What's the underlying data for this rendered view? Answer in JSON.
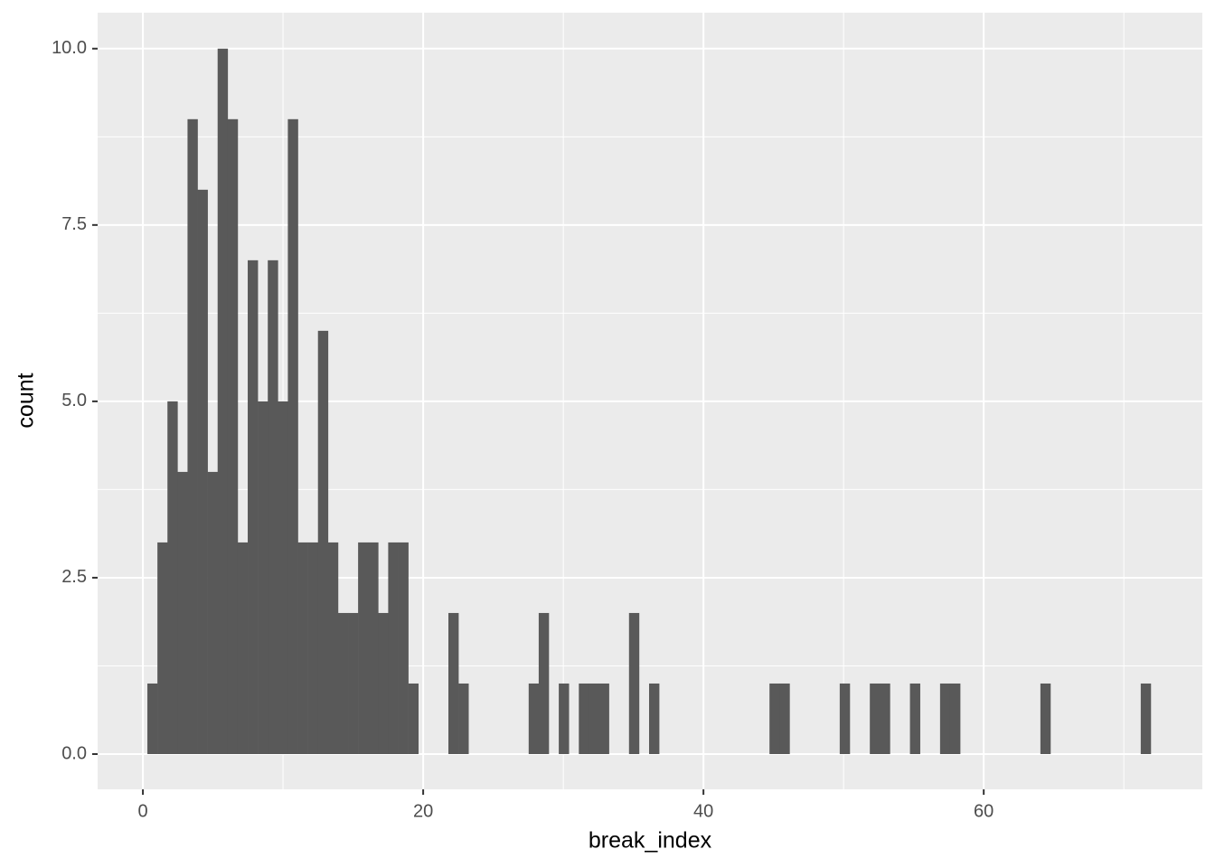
{
  "chart_data": {
    "type": "histogram",
    "x_label": "break_index",
    "y_label": "count",
    "color": "#595959",
    "panel_color": "#ebebeb",
    "grid_color": "#ffffff",
    "grid": true,
    "xlim": [
      -3.23,
      75.6
    ],
    "ylim": [
      -0.5,
      10.51
    ],
    "xticks": [
      0,
      20,
      40,
      60
    ],
    "yticks": [
      {
        "value": 0,
        "label": "0.0"
      },
      2.5,
      {
        "value": 5,
        "label": "5.0"
      },
      7.5,
      {
        "value": 10,
        "label": "10.0"
      }
    ],
    "xminor": [
      10,
      30,
      50,
      70
    ],
    "yminor": [
      1.25,
      3.75,
      6.25,
      8.75
    ],
    "bins": [
      0.32,
      1.036,
      1.752,
      2.468,
      3.184,
      3.9,
      4.616,
      5.332,
      6.048,
      6.764,
      7.48,
      8.196,
      8.912,
      9.628,
      10.344,
      11.06,
      11.776,
      12.492,
      13.208,
      13.924,
      14.64,
      15.356,
      16.072,
      16.788,
      17.504,
      18.22,
      18.936,
      19.652,
      20.368,
      21.084,
      21.8,
      22.516,
      23.232,
      23.948,
      24.664,
      25.38,
      26.096,
      26.812,
      27.528,
      28.244,
      28.96,
      29.676,
      30.392,
      31.108,
      31.824,
      32.54,
      33.256,
      33.972,
      34.688,
      35.404,
      36.12,
      36.836,
      37.552,
      38.268,
      38.984,
      39.7,
      40.416,
      41.132,
      41.848,
      42.564,
      43.28,
      43.996,
      44.712,
      45.428,
      46.144,
      46.86,
      47.576,
      48.292,
      49.008,
      49.724,
      50.44,
      51.156,
      51.872,
      52.588,
      53.304,
      54.02,
      54.736,
      55.452,
      56.168,
      56.884,
      57.6,
      58.316,
      59.032,
      59.748,
      60.464,
      61.18,
      61.896,
      62.612,
      63.328,
      64.044,
      64.76,
      65.476,
      66.192,
      66.908,
      67.624,
      68.34,
      69.056,
      69.772,
      70.488,
      71.204,
      71.92
    ],
    "values": [
      1,
      3,
      5,
      4,
      9,
      8,
      4,
      10,
      9,
      3,
      7,
      5,
      7,
      5,
      9,
      3,
      3,
      6,
      3,
      2,
      2,
      3,
      3,
      2,
      3,
      3,
      1,
      0,
      0,
      0,
      2,
      1,
      0,
      0,
      0,
      0,
      0,
      0,
      1,
      2,
      0,
      1,
      0,
      1,
      1,
      1,
      0,
      0,
      2,
      0,
      1,
      0,
      0,
      0,
      0,
      0,
      0,
      0,
      0,
      0,
      0,
      0,
      1,
      1,
      0,
      0,
      0,
      0,
      0,
      1,
      0,
      0,
      1,
      1,
      0,
      0,
      1,
      0,
      0,
      1,
      1,
      0,
      0,
      0,
      0,
      0,
      0,
      0,
      0,
      1,
      0,
      0,
      0,
      0,
      0,
      0,
      0,
      0,
      0,
      1
    ]
  }
}
